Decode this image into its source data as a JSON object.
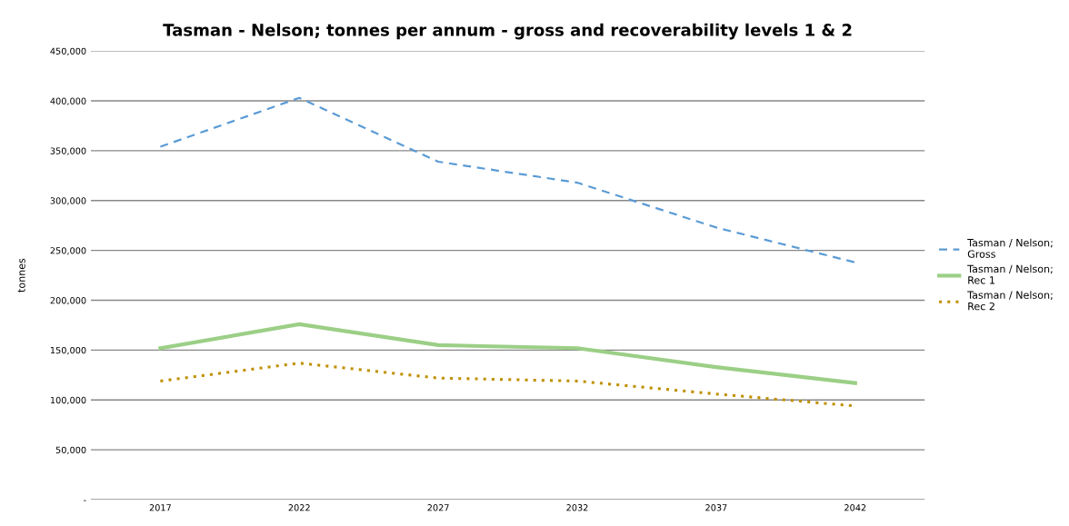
{
  "chart_data": {
    "type": "line",
    "title": "Tasman - Nelson; tonnes per annum - gross and recoverability levels 1 & 2",
    "ylabel": "tonnes",
    "categories": [
      "2017",
      "2022",
      "2027",
      "2032",
      "2037",
      "2042"
    ],
    "series": [
      {
        "name": "Tasman / Nelson; Gross",
        "color": "#5b9bd5",
        "line_style": "dashed",
        "values": [
          354000,
          403000,
          339000,
          318000,
          273000,
          238000
        ]
      },
      {
        "name": "Tasman / Nelson; Rec 1",
        "color": "#9bcf86",
        "line_style": "solid",
        "values": [
          152000,
          176000,
          155000,
          152000,
          133000,
          117000
        ]
      },
      {
        "name": "Tasman / Nelson; Rec 2",
        "color": "#bf9000",
        "line_style": "dotted",
        "values": [
          119000,
          137000,
          122000,
          119000,
          106000,
          94000
        ]
      }
    ],
    "ylim": [
      0,
      450000
    ],
    "yticks": [
      {
        "value": 0,
        "label": "-"
      },
      {
        "value": 50000,
        "label": "50,000"
      },
      {
        "value": 100000,
        "label": "100,000"
      },
      {
        "value": 150000,
        "label": "150,000"
      },
      {
        "value": 200000,
        "label": "200,000"
      },
      {
        "value": 250000,
        "label": "250,000"
      },
      {
        "value": 300000,
        "label": "300,000"
      },
      {
        "value": 350000,
        "label": "350,000"
      },
      {
        "value": 400000,
        "label": "400,000"
      },
      {
        "value": 450000,
        "label": "450,000"
      }
    ],
    "grid": "y",
    "legend": "right"
  }
}
